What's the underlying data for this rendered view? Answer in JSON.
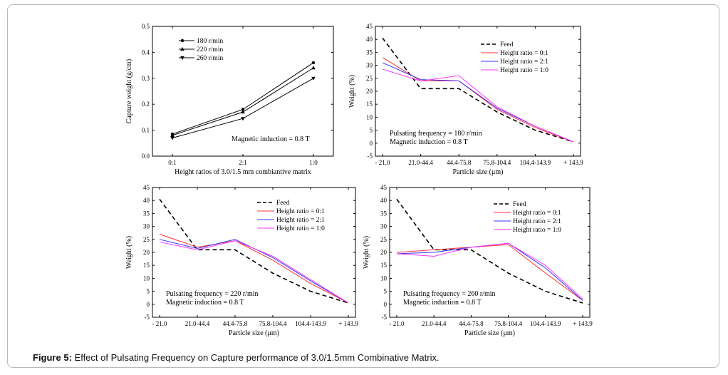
{
  "caption": {
    "label": "Figure 5:",
    "text": " Effect of Pulsating Frequency on Capture performance of 3.0/1.5mm Combinative Matrix."
  },
  "chart_data": [
    {
      "type": "line",
      "xlabel": "Height ratios of 3.0/1.5 mm combiantive matrix",
      "ylabel": "Capture weight (g/cm)",
      "categories": [
        "0:1",
        "2:1",
        "1:0"
      ],
      "ylim": [
        0.0,
        0.5
      ],
      "yticks": [
        "0.0",
        "0.1",
        "0.2",
        "0.3",
        "0.4",
        "0.5"
      ],
      "series": [
        {
          "name": "180 r/min",
          "values": [
            0.085,
            0.18,
            0.36
          ],
          "marker": "circle",
          "color": "#000000"
        },
        {
          "name": "220 r/min",
          "values": [
            0.08,
            0.17,
            0.34
          ],
          "marker": "triangle-up",
          "color": "#000000"
        },
        {
          "name": "260 r/min",
          "values": [
            0.07,
            0.145,
            0.3
          ],
          "marker": "triangle-down",
          "color": "#000000"
        }
      ],
      "annotations": [
        "Magnetic induction = 0.8 T"
      ],
      "legend": "top-left"
    },
    {
      "type": "line",
      "xlabel": "Particle size (μm)",
      "ylabel": "Weight (%)",
      "categories": [
        "- 21.0",
        "21.0-44.4",
        "44.4-75.8",
        "75.8-104.4",
        "104.4-143.9",
        "+ 143.9"
      ],
      "ylim": [
        -5,
        45
      ],
      "yticks": [
        "-5",
        "0",
        "5",
        "10",
        "15",
        "20",
        "25",
        "30",
        "35",
        "40",
        "45"
      ],
      "series": [
        {
          "name": "Feed",
          "values": [
            40.5,
            21,
            21,
            12,
            5,
            0.5
          ],
          "color": "#000000",
          "dash": true
        },
        {
          "name": "Height ratio = 0:1",
          "values": [
            33,
            24,
            24,
            13,
            6,
            0.5
          ],
          "color": "#ff3333"
        },
        {
          "name": "Height ratio = 2:1",
          "values": [
            31,
            24.5,
            24,
            13.5,
            6.5,
            0.5
          ],
          "color": "#3333ff"
        },
        {
          "name": "Height ratio = 1:0",
          "values": [
            28.5,
            24,
            26,
            14,
            6.5,
            0.5
          ],
          "color": "#ff33ff"
        }
      ],
      "annotations": [
        "Pulsating frequency = 180 r/min",
        "Magnetic induction = 0.8 T"
      ],
      "legend": "top-right"
    },
    {
      "type": "line",
      "xlabel": "Particle size (μm)",
      "ylabel": "Weight (%)",
      "categories": [
        "- 21.0",
        "21.0-44.4",
        "44.4-75.8",
        "75.8-104.4",
        "104.4-143.9",
        "+ 143.9"
      ],
      "ylim": [
        -5,
        45
      ],
      "yticks": [
        "-5",
        "0",
        "5",
        "10",
        "15",
        "20",
        "25",
        "30",
        "35",
        "40",
        "45"
      ],
      "series": [
        {
          "name": "Feed",
          "values": [
            40.5,
            21,
            21,
            12,
            5,
            0.5
          ],
          "color": "#000000",
          "dash": true
        },
        {
          "name": "Height ratio = 0:1",
          "values": [
            27,
            22,
            24.5,
            17,
            8,
            0.5
          ],
          "color": "#ff3333"
        },
        {
          "name": "Height ratio = 2:1",
          "values": [
            25,
            21.5,
            25,
            18,
            9,
            0.5
          ],
          "color": "#3333ff"
        },
        {
          "name": "Height ratio = 1:0",
          "values": [
            24,
            21,
            24.5,
            18.5,
            9.5,
            0.5
          ],
          "color": "#ff33ff"
        }
      ],
      "annotations": [
        "Pulsating frequency = 220 r/min",
        "Magnetic induction = 0.8 T"
      ],
      "legend": "top-right"
    },
    {
      "type": "line",
      "xlabel": "Particle size (μm)",
      "ylabel": "Weight (%)",
      "categories": [
        "- 21.0",
        "21.0-44.4",
        "44.4-75.8",
        "75.8-104.4",
        "104.4-143.9",
        "+ 143.9"
      ],
      "ylim": [
        -5,
        45
      ],
      "yticks": [
        "-5",
        "0",
        "5",
        "10",
        "15",
        "20",
        "25",
        "30",
        "35",
        "40",
        "45"
      ],
      "series": [
        {
          "name": "Feed",
          "values": [
            40.5,
            21,
            21,
            12,
            5,
            0.5
          ],
          "color": "#000000",
          "dash": true
        },
        {
          "name": "Height ratio = 0:1",
          "values": [
            20,
            21,
            22,
            23,
            12,
            1.5
          ],
          "color": "#ff3333"
        },
        {
          "name": "Height ratio = 2:1",
          "values": [
            19.5,
            20,
            22,
            23.5,
            14,
            1.5
          ],
          "color": "#3333ff"
        },
        {
          "name": "Height ratio = 1:0",
          "values": [
            19.5,
            18.5,
            22,
            23.5,
            15,
            2
          ],
          "color": "#ff33ff"
        }
      ],
      "annotations": [
        "Pulsating frequency = 260 r/min",
        "Magnetic induction = 0.8 T"
      ],
      "legend": "top-right"
    }
  ]
}
